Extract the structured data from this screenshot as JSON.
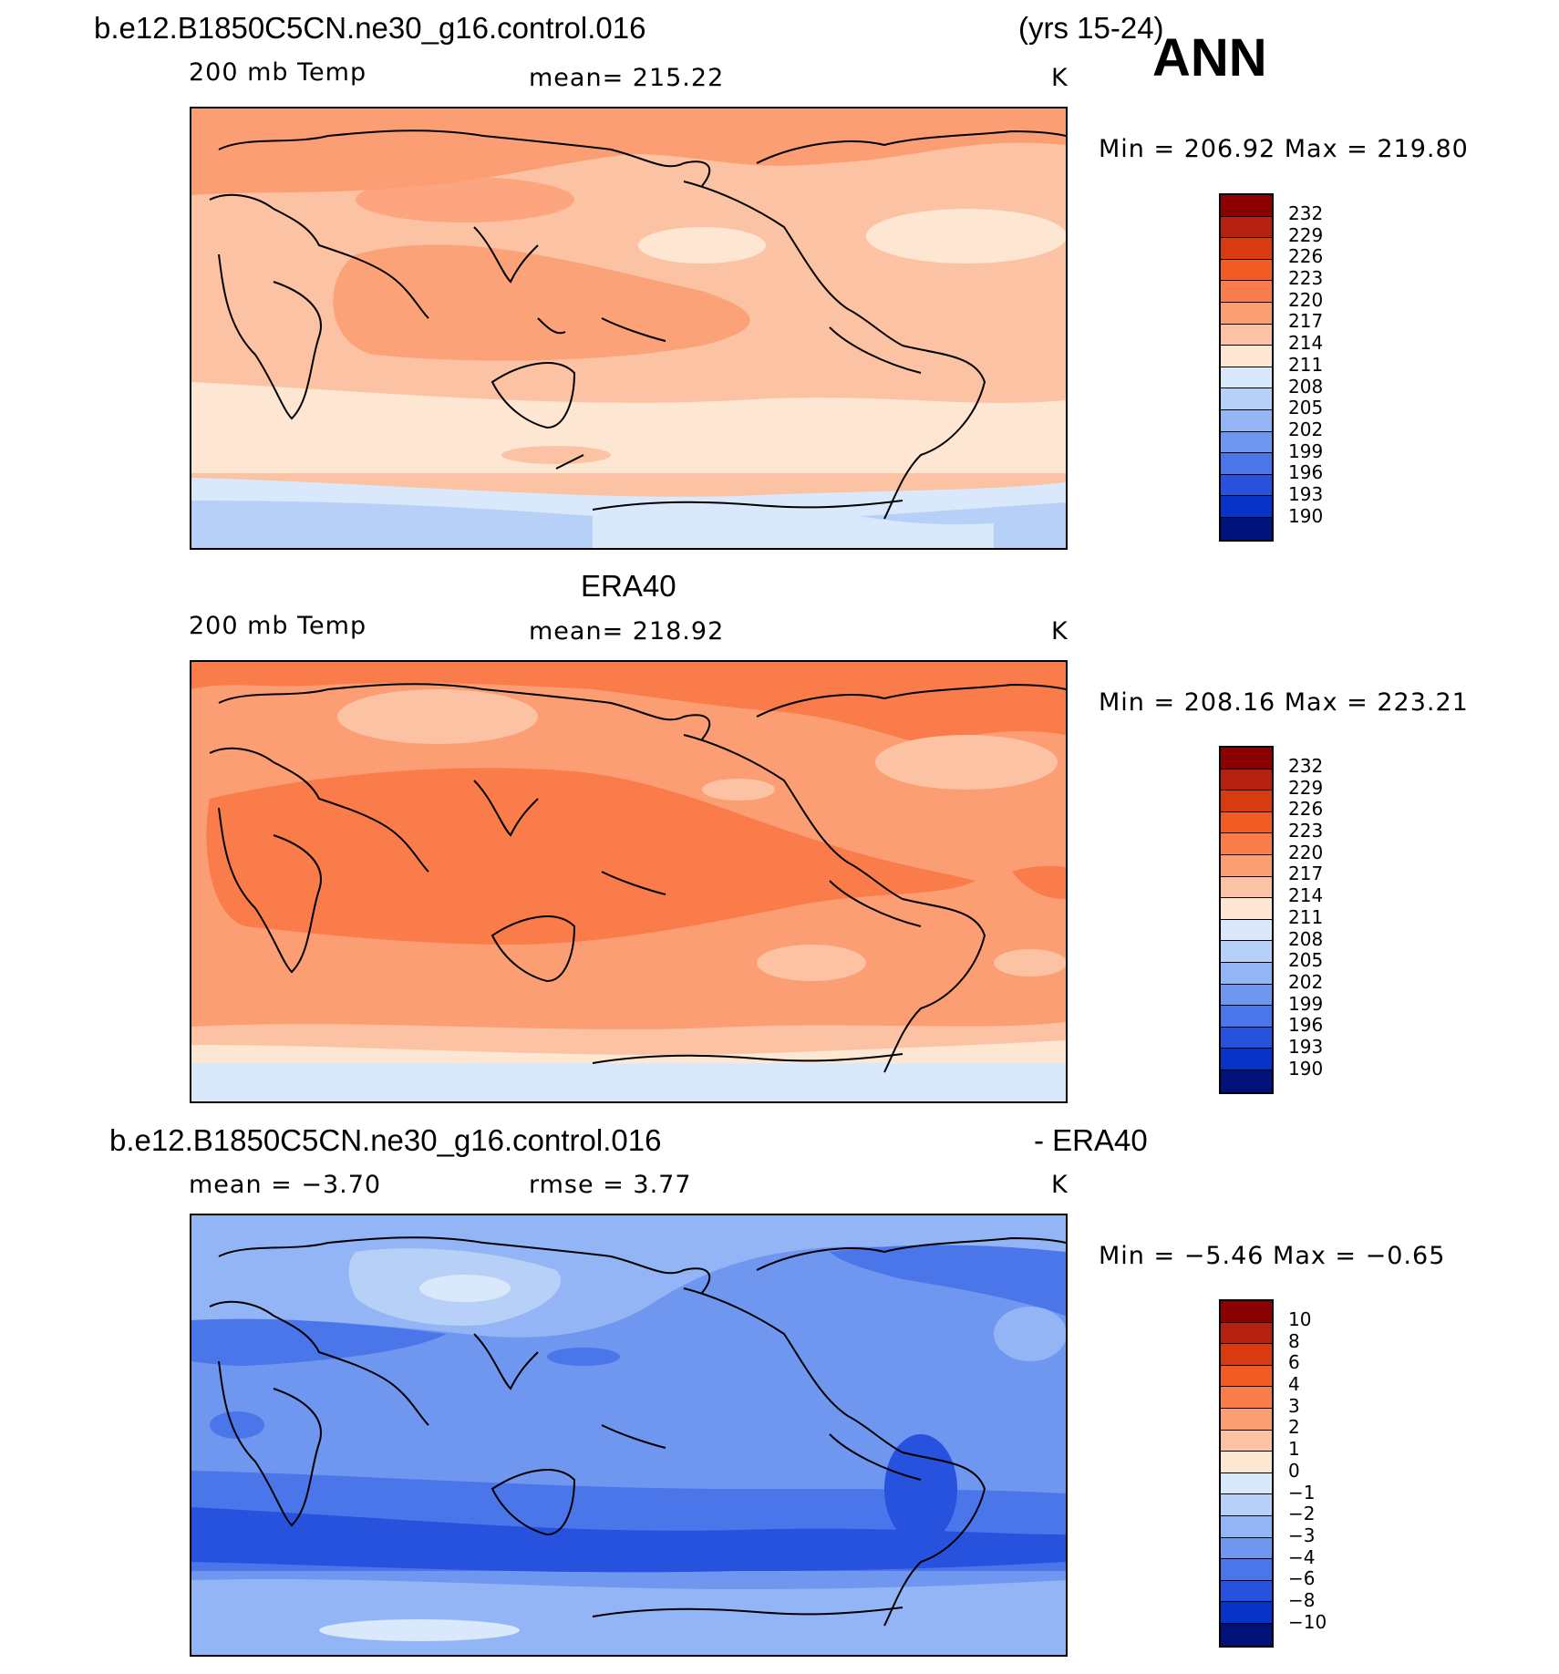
{
  "header": {
    "case_title": "b.e12.B1850C5CN.ne30_g16.control.016",
    "years": "(yrs 15-24)",
    "season": "ANN"
  },
  "panels": [
    {
      "id": "model",
      "title": "",
      "variable": "200 mb Temp",
      "mean_text": "mean=  215.22",
      "units": "K",
      "minmax": "Min  =  206.92  Max  =  219.80",
      "colorbar": {
        "labels": [
          "232",
          "229",
          "226",
          "223",
          "220",
          "217",
          "214",
          "211",
          "208",
          "205",
          "202",
          "199",
          "196",
          "193",
          "190"
        ],
        "colors": [
          "#8b0000",
          "#b5200f",
          "#d93a10",
          "#f25c24",
          "#f97c4a",
          "#fb9e74",
          "#fcc2a4",
          "#fde6d2",
          "#d9e9fb",
          "#b7d0f8",
          "#93b5f5",
          "#6f97f0",
          "#4a76ea",
          "#2752de",
          "#0733c9",
          "#00127a"
        ]
      }
    },
    {
      "id": "obs",
      "title": "ERA40",
      "variable": "200 mb Temp",
      "mean_text": "mean=  218.92",
      "units": "K",
      "minmax": "Min  =  208.16  Max  =  223.21",
      "colorbar": {
        "labels": [
          "232",
          "229",
          "226",
          "223",
          "220",
          "217",
          "214",
          "211",
          "208",
          "205",
          "202",
          "199",
          "196",
          "193",
          "190"
        ],
        "colors": [
          "#8b0000",
          "#b5200f",
          "#d93a10",
          "#f25c24",
          "#f97c4a",
          "#fb9e74",
          "#fcc2a4",
          "#fde6d2",
          "#d9e9fb",
          "#b7d0f8",
          "#93b5f5",
          "#6f97f0",
          "#4a76ea",
          "#2752de",
          "#0733c9",
          "#00127a"
        ]
      }
    },
    {
      "id": "diff",
      "title": "b.e12.B1850C5CN.ne30_g16.control.016",
      "title_right": "- ERA40",
      "mean_text": "mean  =    −3.70",
      "rmse_text": "rmse  =     3.77",
      "units": "K",
      "minmax": "Min  =    −5.46  Max  =    −0.65",
      "colorbar": {
        "labels": [
          "10",
          "8",
          "6",
          "4",
          "3",
          "2",
          "1",
          "0",
          "−1",
          "−2",
          "−3",
          "−4",
          "−6",
          "−8",
          "−10"
        ],
        "colors": [
          "#8b0000",
          "#b5200f",
          "#d93a10",
          "#f25c24",
          "#f97c4a",
          "#fb9e74",
          "#fcc2a4",
          "#fde6d2",
          "#d9e9fb",
          "#b7d0f8",
          "#93b5f5",
          "#6f97f0",
          "#4a76ea",
          "#2752de",
          "#0733c9",
          "#00127a"
        ]
      }
    }
  ]
}
